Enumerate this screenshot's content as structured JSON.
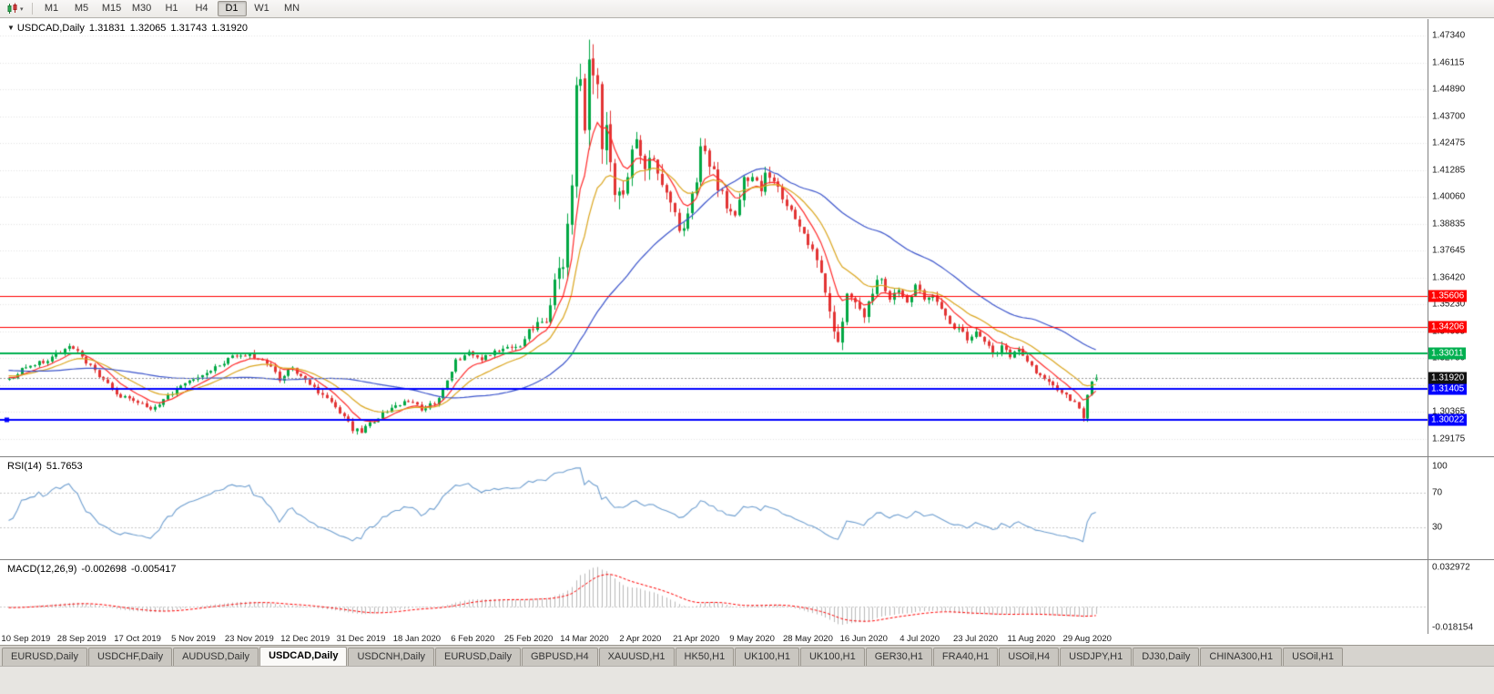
{
  "toolbar": {
    "chart_type_icon": "candlestick-chart",
    "dropdown_caret": "▾",
    "periods": [
      "M1",
      "M5",
      "M15",
      "M30",
      "H1",
      "H4",
      "D1",
      "W1",
      "MN"
    ],
    "active_period": "D1"
  },
  "chart": {
    "context_icon": "▼",
    "title": "USDCAD,Daily",
    "ohlc": {
      "open": "1.31831",
      "high": "1.32065",
      "low": "1.31743",
      "close": "1.31920"
    },
    "bull_color": "#00a843",
    "bear_color": "#e23434",
    "price_axis_ticks": [
      "1.47340",
      "1.46115",
      "1.44890",
      "1.43700",
      "1.42475",
      "1.41285",
      "1.40060",
      "1.38835",
      "1.37645",
      "1.36420",
      "1.35230",
      "1.34005",
      "1.32780",
      "1.31590",
      "1.30365",
      "1.29175"
    ],
    "levels": [
      {
        "price": 1.35606,
        "label": "1.35606",
        "color": "#ff0000",
        "width": 1,
        "selected": false
      },
      {
        "price": 1.34206,
        "label": "1.34206",
        "color": "#ff0000",
        "width": 1,
        "selected": false
      },
      {
        "price": 1.33011,
        "label": "1.33011",
        "color": "#00b050",
        "width": 2,
        "selected": false
      },
      {
        "price": 1.31405,
        "label": "1.31405",
        "color": "#0000ff",
        "width": 2,
        "selected": false
      },
      {
        "price": 1.30022,
        "label": "1.30022",
        "color": "#0000ff",
        "width": 2,
        "selected": true
      }
    ],
    "current_price": {
      "value": 1.3192,
      "label": "1.31920",
      "bg": "#111111",
      "line_color": "#999999"
    }
  },
  "rsi": {
    "name": "RSI(14)",
    "value": "51.7653",
    "color": "#6f9fd0",
    "axis_labels": [
      "100",
      "70",
      "30"
    ],
    "axis_values": [
      100,
      70,
      30
    ],
    "level_lines": [
      70,
      30
    ]
  },
  "macd": {
    "name": "MACD(12,26,9)",
    "value_main": "-0.002698",
    "value_signal": "-0.005417",
    "axis_max_label": "0.032972",
    "axis_min_label": "-0.018154",
    "axis_max": 0.032972,
    "axis_min": -0.018154,
    "histogram_color": "#b9b9b9",
    "signal_color": "#ff0000"
  },
  "tabs": {
    "items": [
      "EURUSD,Daily",
      "USDCHF,Daily",
      "AUDUSD,Daily",
      "USDCAD,Daily",
      "USDCNH,Daily",
      "EURUSD,Daily",
      "GBPUSD,H4",
      "XAUUSD,H1",
      "HK50,H1",
      "UK100,H1",
      "UK100,H1",
      "GER30,H1",
      "FRA40,H1",
      "USOil,H4",
      "USDJPY,H1",
      "DJ30,Daily",
      "CHINA300,H1",
      "USOil,H1"
    ],
    "active_index": 3
  },
  "chart_data": {
    "type": "candlestick",
    "symbol": "USDCAD",
    "timeframe": "Daily",
    "bars": 254,
    "price_range": [
      1.29175,
      1.4734
    ],
    "last_bar": {
      "open": 1.31831,
      "high": 1.32065,
      "low": 1.31743,
      "close": 1.3192
    },
    "date_labels": [
      "10 Sep 2019",
      "28 Sep 2019",
      "17 Oct 2019",
      "5 Nov 2019",
      "23 Nov 2019",
      "12 Dec 2019",
      "31 Dec 2019",
      "18 Jan 2020",
      "6 Feb 2020",
      "25 Feb 2020",
      "14 Mar 2020",
      "2 Apr 2020",
      "21 Apr 2020",
      "9 May 2020",
      "28 May 2020",
      "16 Jun 2020",
      "4 Jul 2020",
      "23 Jul 2020",
      "11 Aug 2020",
      "29 Aug 2020"
    ],
    "date_tick_indices": [
      4,
      17,
      30,
      43,
      56,
      69,
      82,
      95,
      108,
      121,
      134,
      147,
      160,
      173,
      186,
      199,
      212,
      225,
      238,
      251
    ],
    "close_anchors": [
      [
        0,
        1.3185
      ],
      [
        4,
        1.324
      ],
      [
        9,
        1.327
      ],
      [
        14,
        1.333
      ],
      [
        17,
        1.329
      ],
      [
        21,
        1.3195
      ],
      [
        26,
        1.3105
      ],
      [
        30,
        1.308
      ],
      [
        33,
        1.3045
      ],
      [
        37,
        1.311
      ],
      [
        42,
        1.317
      ],
      [
        47,
        1.323
      ],
      [
        52,
        1.3285
      ],
      [
        56,
        1.33
      ],
      [
        60,
        1.3255
      ],
      [
        63,
        1.3185
      ],
      [
        66,
        1.324
      ],
      [
        70,
        1.3155
      ],
      [
        73,
        1.312
      ],
      [
        77,
        1.3035
      ],
      [
        80,
        1.2958
      ],
      [
        82,
        1.2952
      ],
      [
        85,
        1.3
      ],
      [
        89,
        1.3055
      ],
      [
        93,
        1.309
      ],
      [
        96,
        1.3045
      ],
      [
        99,
        1.308
      ],
      [
        102,
        1.317
      ],
      [
        104,
        1.327
      ],
      [
        107,
        1.33
      ],
      [
        110,
        1.328
      ],
      [
        113,
        1.3305
      ],
      [
        116,
        1.332
      ],
      [
        119,
        1.334
      ],
      [
        121,
        1.3405
      ],
      [
        123,
        1.3435
      ],
      [
        125,
        1.3465
      ],
      [
        127,
        1.361
      ],
      [
        128,
        1.372
      ],
      [
        129,
        1.368
      ],
      [
        130,
        1.3905
      ],
      [
        131,
        1.406
      ],
      [
        132,
        1.4455
      ],
      [
        133,
        1.4485
      ],
      [
        134,
        1.4355
      ],
      [
        135,
        1.463
      ],
      [
        136,
        1.4505
      ],
      [
        137,
        1.447
      ],
      [
        138,
        1.4255
      ],
      [
        139,
        1.4345
      ],
      [
        140,
        1.418
      ],
      [
        141,
        1.406
      ],
      [
        142,
        1.399
      ],
      [
        144,
        1.413
      ],
      [
        146,
        1.4265
      ],
      [
        148,
        1.413
      ],
      [
        150,
        1.421
      ],
      [
        152,
        1.406
      ],
      [
        154,
        1.399
      ],
      [
        156,
        1.388
      ],
      [
        158,
        1.3905
      ],
      [
        160,
        1.409
      ],
      [
        161,
        1.4215
      ],
      [
        163,
        1.416
      ],
      [
        165,
        1.406
      ],
      [
        167,
        1.3965
      ],
      [
        169,
        1.3945
      ],
      [
        171,
        1.4085
      ],
      [
        173,
        1.411
      ],
      [
        175,
        1.405
      ],
      [
        176,
        1.4105
      ],
      [
        178,
        1.406
      ],
      [
        180,
        1.401
      ],
      [
        182,
        1.394
      ],
      [
        184,
        1.386
      ],
      [
        186,
        1.378
      ],
      [
        188,
        1.372
      ],
      [
        190,
        1.356
      ],
      [
        191,
        1.348
      ],
      [
        192,
        1.342
      ],
      [
        193,
        1.3345
      ],
      [
        195,
        1.359
      ],
      [
        197,
        1.353
      ],
      [
        199,
        1.3445
      ],
      [
        201,
        1.3585
      ],
      [
        203,
        1.3645
      ],
      [
        205,
        1.355
      ],
      [
        207,
        1.358
      ],
      [
        209,
        1.353
      ],
      [
        211,
        1.3605
      ],
      [
        213,
        1.3545
      ],
      [
        215,
        1.3575
      ],
      [
        217,
        1.35
      ],
      [
        219,
        1.3425
      ],
      [
        221,
        1.3405
      ],
      [
        223,
        1.337
      ],
      [
        225,
        1.341
      ],
      [
        227,
        1.3345
      ],
      [
        229,
        1.33
      ],
      [
        231,
        1.333
      ],
      [
        233,
        1.329
      ],
      [
        235,
        1.332
      ],
      [
        237,
        1.327
      ],
      [
        239,
        1.322
      ],
      [
        241,
        1.318
      ],
      [
        243,
        1.316
      ],
      [
        245,
        1.312
      ],
      [
        247,
        1.3095
      ],
      [
        249,
        1.305
      ],
      [
        250,
        1.301
      ],
      [
        251,
        1.311
      ],
      [
        252,
        1.3165
      ],
      [
        253,
        1.3192
      ]
    ],
    "volatility_anchors": [
      [
        0,
        0.0026
      ],
      [
        40,
        0.0026
      ],
      [
        80,
        0.003
      ],
      [
        110,
        0.0024
      ],
      [
        122,
        0.0034
      ],
      [
        127,
        0.008
      ],
      [
        131,
        0.013
      ],
      [
        135,
        0.0165
      ],
      [
        140,
        0.0125
      ],
      [
        146,
        0.0105
      ],
      [
        152,
        0.0085
      ],
      [
        160,
        0.007
      ],
      [
        172,
        0.0058
      ],
      [
        184,
        0.0052
      ],
      [
        191,
        0.007
      ],
      [
        196,
        0.006
      ],
      [
        204,
        0.0046
      ],
      [
        214,
        0.004
      ],
      [
        226,
        0.0036
      ],
      [
        240,
        0.0032
      ],
      [
        253,
        0.0028
      ]
    ],
    "moving_averages": [
      {
        "period": 8,
        "method": "ema",
        "color": "#ff2a2a"
      },
      {
        "period": 17,
        "method": "ema",
        "color": "#dba61f"
      },
      {
        "period": 45,
        "method": "sma",
        "color": "#3c55cc"
      }
    ],
    "rsi_period": 14,
    "macd": {
      "fast": 12,
      "slow": 26,
      "signal": 9
    },
    "horizontal_levels": [
      1.35606,
      1.34206,
      1.33011,
      1.31405,
      1.30022
    ]
  }
}
